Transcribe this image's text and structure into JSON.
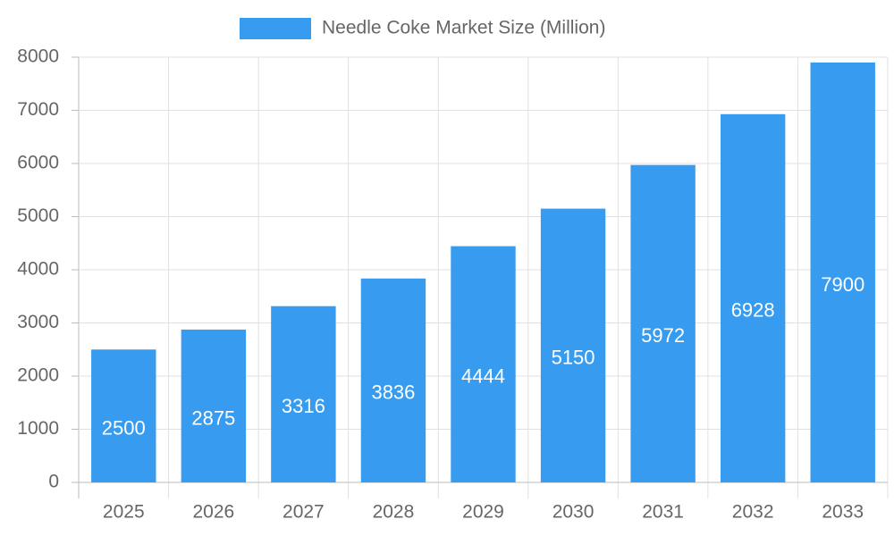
{
  "chart_data": {
    "type": "bar",
    "categories": [
      "2025",
      "2026",
      "2027",
      "2028",
      "2029",
      "2030",
      "2031",
      "2032",
      "2033"
    ],
    "series": [
      {
        "name": "Needle Coke Market Size (Million)",
        "color": "#379cf0",
        "values": [
          2500,
          2875,
          3316,
          3836,
          4444,
          5150,
          5972,
          6928,
          7900
        ]
      }
    ],
    "ylim": [
      0,
      8000
    ],
    "yticks": [
      0,
      1000,
      2000,
      3000,
      4000,
      5000,
      6000,
      7000,
      8000
    ],
    "grid": true,
    "legend": "top",
    "data_labels": true
  }
}
